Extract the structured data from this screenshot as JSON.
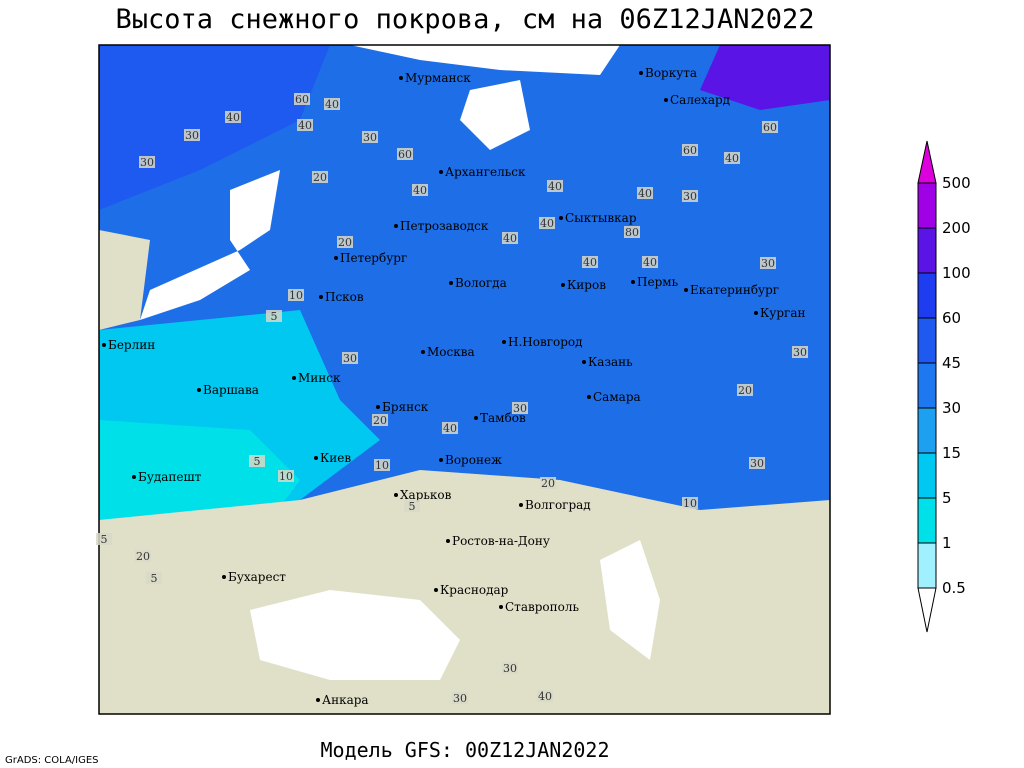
{
  "header": {
    "title": "Высота снежного покрова, см на 06Z12JAN2022"
  },
  "footer": {
    "model": "Модель GFS: 00Z12JAN2022",
    "credit": "GrADS: COLA/IGES"
  },
  "legend": {
    "levels": [
      0.5,
      1,
      5,
      15,
      30,
      45,
      60,
      100,
      200,
      500
    ],
    "colors": [
      "#ffffff",
      "#a0f0ff",
      "#00e0e8",
      "#00c8f0",
      "#1ea0f0",
      "#1e78f0",
      "#1e5af0",
      "#1e3cf0",
      "#5a14e6",
      "#a000e6",
      "#dc00dc"
    ]
  },
  "cities": [
    "Мурманск",
    "Воркута",
    "Салехард",
    "Архангельск",
    "Петрозаводск",
    "Сыктывкар",
    "Петербург",
    "Вологда",
    "Киров",
    "Пермь",
    "Екатеринбург",
    "Курган",
    "Псков",
    "Берлин",
    "Н.Новгород",
    "Москва",
    "Казань",
    "Минск",
    "Варшава",
    "Самара",
    "Брянск",
    "Тамбов",
    "Киев",
    "Воронеж",
    "Будапешт",
    "Харьков",
    "Волгоград",
    "Ростов-на-Дону",
    "Бухарест",
    "Краснодар",
    "Ставрополь",
    "Анкара"
  ],
  "contour_labels": [
    60,
    40,
    30,
    40,
    40,
    30,
    30,
    60,
    20,
    40,
    60,
    40,
    40,
    60,
    40,
    30,
    40,
    20,
    40,
    40,
    80,
    40,
    30,
    10,
    5,
    30,
    30,
    20,
    30,
    40,
    20,
    5,
    10,
    10,
    30,
    20,
    5,
    10,
    5,
    20,
    5,
    30,
    40,
    30
  ]
}
